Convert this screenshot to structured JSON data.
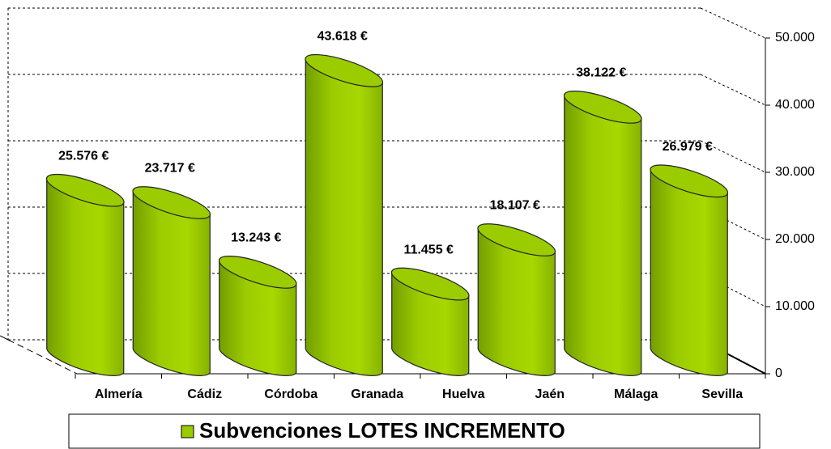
{
  "chart_data": {
    "type": "bar",
    "categories": [
      "Almería",
      "Cádiz",
      "Córdoba",
      "Granada",
      "Huelva",
      "Jaén",
      "Málaga",
      "Sevilla"
    ],
    "series": [
      {
        "name": "Subvenciones LOTES INCREMENTO",
        "color": "#99cc00",
        "values": [
          25576,
          23717,
          13243,
          43618,
          11455,
          18107,
          38122,
          26979
        ],
        "value_labels": [
          "25.576 €",
          "23.717 €",
          "13.243 €",
          "43.618 €",
          "11.455 €",
          "18.107 €",
          "38.122 €",
          "26.979 €"
        ]
      }
    ],
    "ylim": [
      0,
      50000
    ],
    "yticks": [
      0,
      {
        "value": 10000,
        "label": "10.000"
      },
      {
        "value": 20000,
        "label": "20.000"
      },
      {
        "value": 30000,
        "label": "30.000"
      },
      {
        "value": 40000,
        "label": "40.000"
      },
      {
        "value": 50000,
        "label": "50.000"
      }
    ],
    "grid": true,
    "legend": "bottom"
  }
}
